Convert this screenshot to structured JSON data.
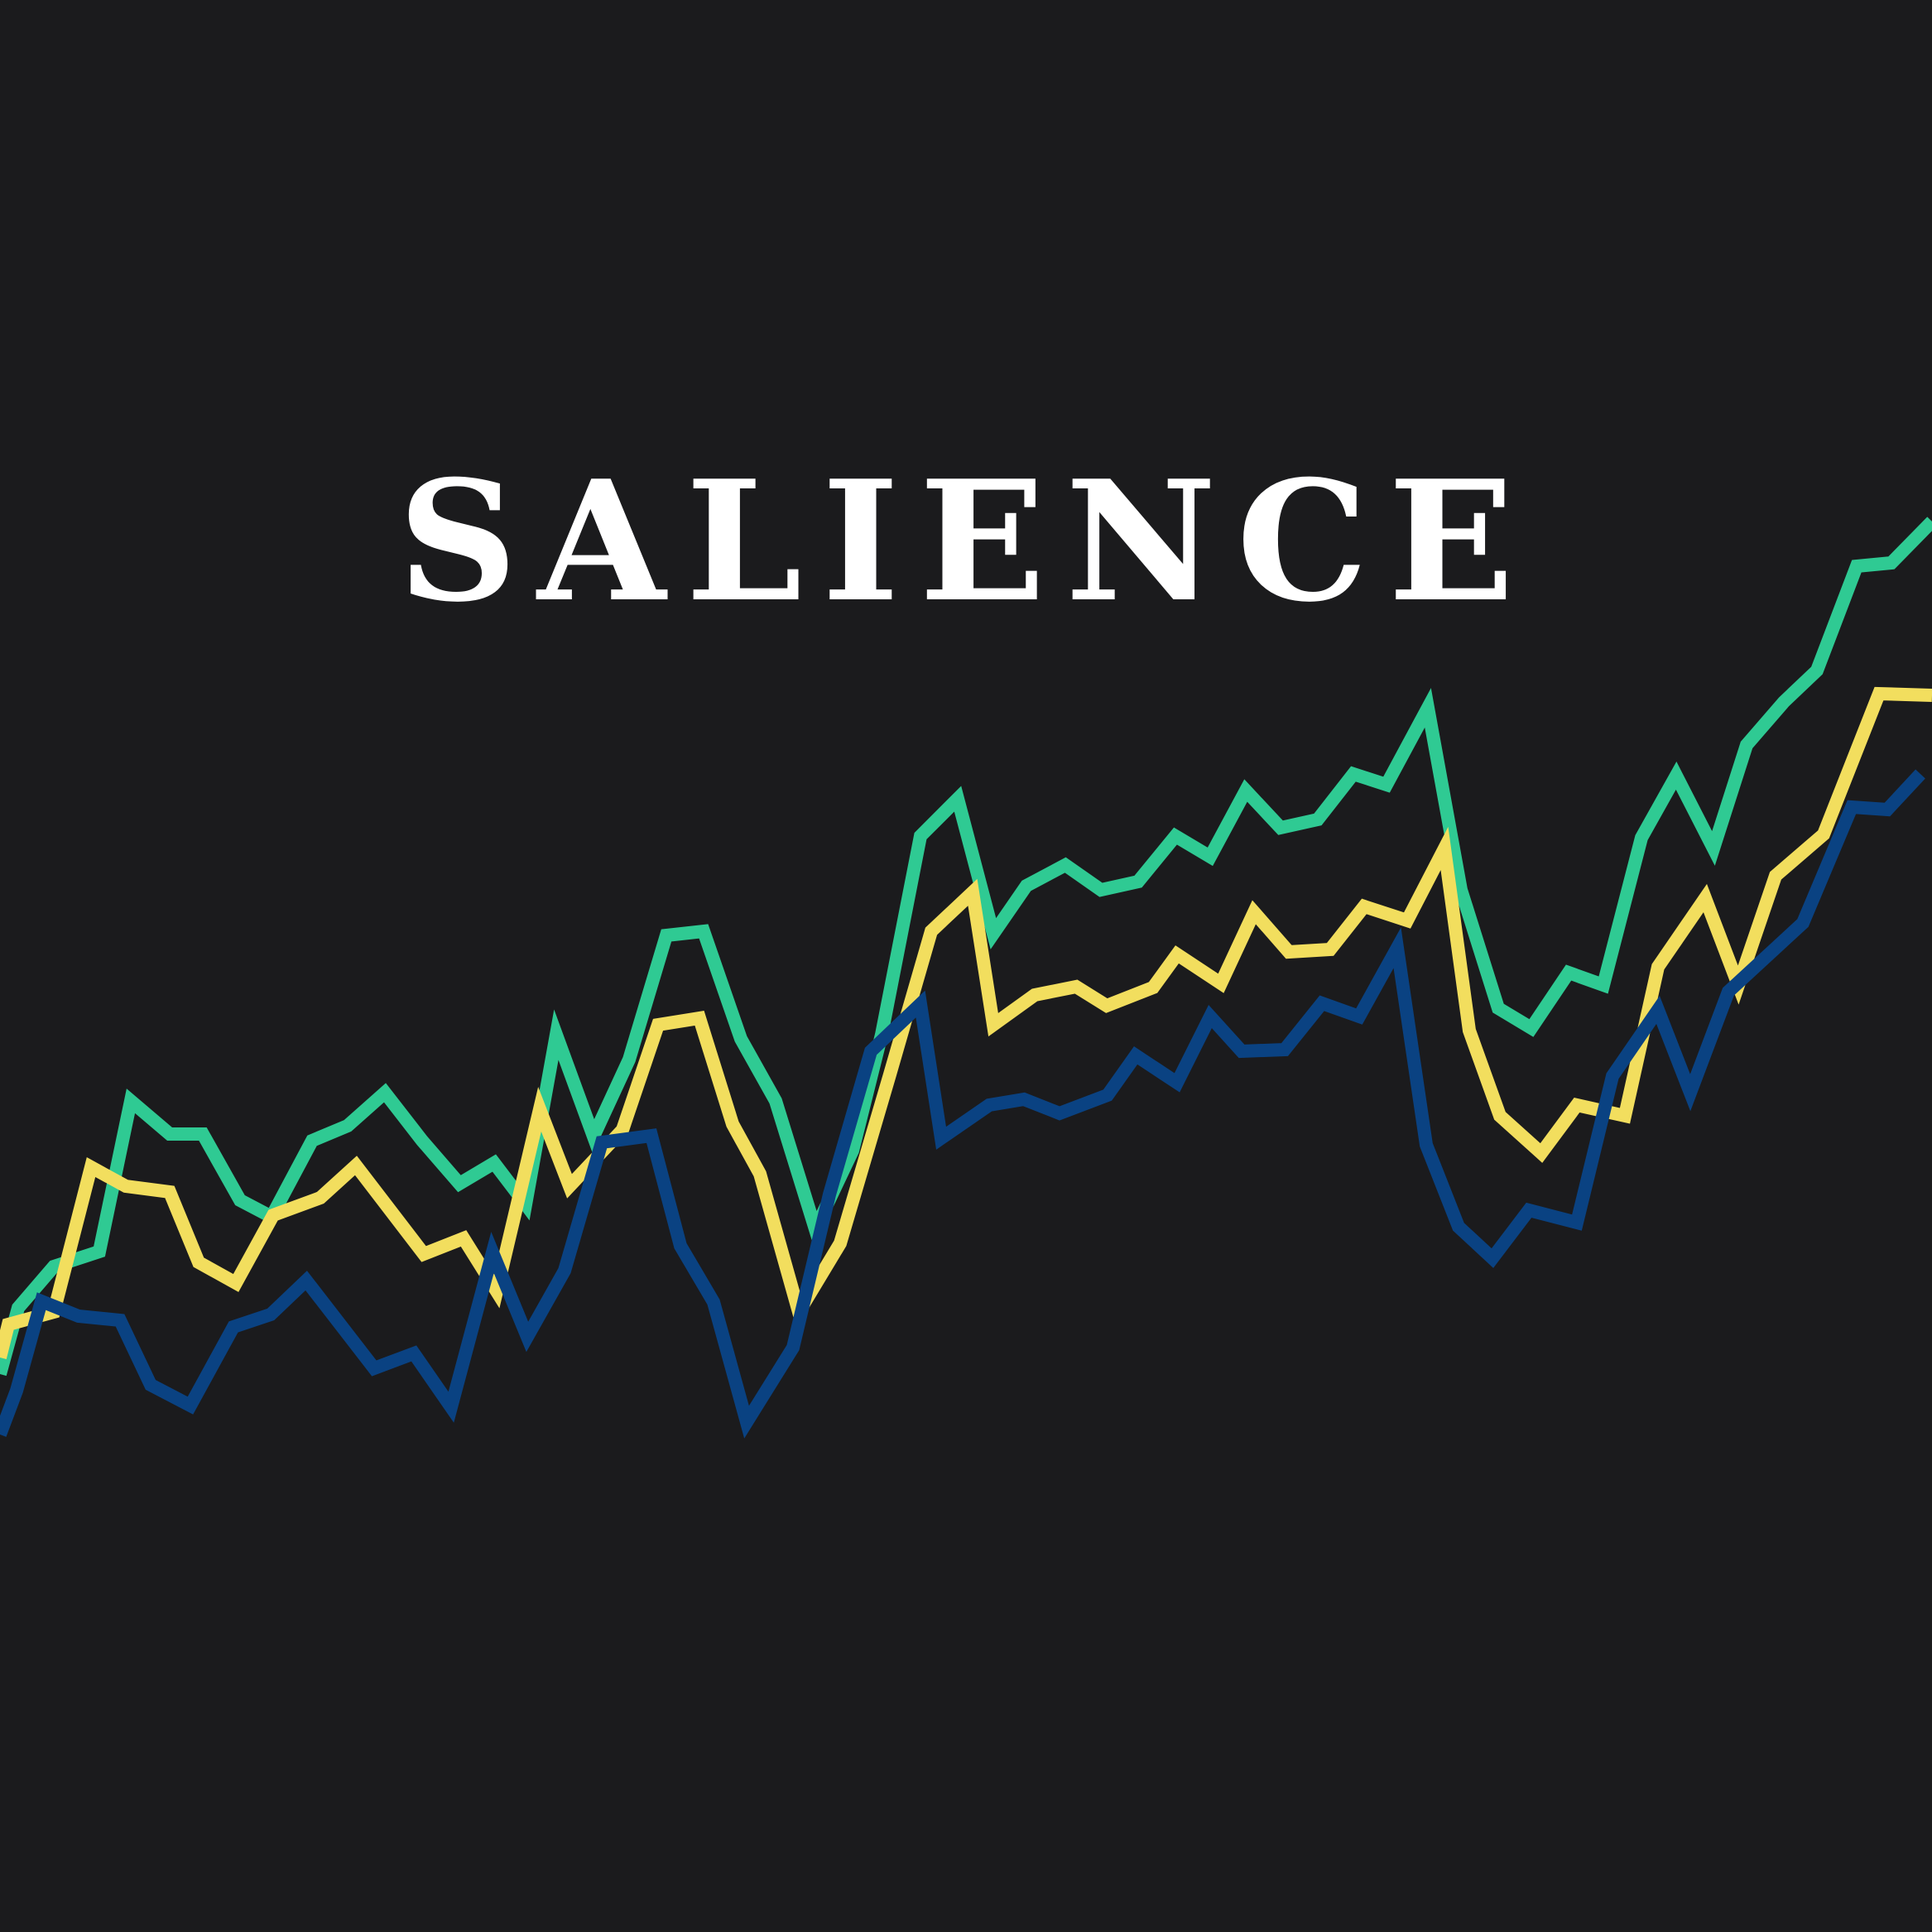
{
  "title": "SALIENCE",
  "colors": {
    "background": "#1b1b1d",
    "title": "#ffffff",
    "green": "#2fca93",
    "yellow": "#f2de5e",
    "blue": "#0a4282"
  },
  "series": [
    {
      "color": "#2fca93",
      "points": [
        [
          0,
          1660
        ],
        [
          22,
          1580
        ],
        [
          65,
          1530
        ],
        [
          120,
          1512
        ],
        [
          158,
          1330
        ],
        [
          205,
          1370
        ],
        [
          245,
          1370
        ],
        [
          290,
          1450
        ],
        [
          328,
          1470
        ],
        [
          377,
          1378
        ],
        [
          420,
          1360
        ],
        [
          465,
          1320
        ],
        [
          510,
          1378
        ],
        [
          555,
          1430
        ],
        [
          597,
          1405
        ],
        [
          635,
          1455
        ],
        [
          672,
          1250
        ],
        [
          717,
          1373
        ],
        [
          760,
          1280
        ],
        [
          805,
          1130
        ],
        [
          850,
          1125
        ],
        [
          895,
          1255
        ],
        [
          937,
          1330
        ],
        [
          985,
          1485
        ],
        [
          1030,
          1390
        ],
        [
          1065,
          1250
        ],
        [
          1112,
          1010
        ],
        [
          1157,
          965
        ],
        [
          1200,
          1128
        ],
        [
          1240,
          1070
        ],
        [
          1287,
          1045
        ],
        [
          1330,
          1075
        ],
        [
          1375,
          1065
        ],
        [
          1420,
          1010
        ],
        [
          1462,
          1035
        ],
        [
          1505,
          955
        ],
        [
          1547,
          1000
        ],
        [
          1592,
          990
        ],
        [
          1635,
          935
        ],
        [
          1675,
          948
        ],
        [
          1725,
          855
        ],
        [
          1765,
          1075
        ],
        [
          1810,
          1218
        ],
        [
          1850,
          1242
        ],
        [
          1895,
          1175
        ],
        [
          1937,
          1190
        ],
        [
          1983,
          1012
        ],
        [
          2025,
          937
        ],
        [
          2070,
          1025
        ],
        [
          2110,
          900
        ],
        [
          2155,
          848
        ],
        [
          2195,
          810
        ],
        [
          2243,
          684
        ],
        [
          2285,
          680
        ],
        [
          2334,
          630
        ]
      ]
    },
    {
      "color": "#f2de5e",
      "points": [
        [
          0,
          1640
        ],
        [
          10,
          1600
        ],
        [
          65,
          1585
        ],
        [
          110,
          1410
        ],
        [
          152,
          1433
        ],
        [
          205,
          1440
        ],
        [
          240,
          1525
        ],
        [
          285,
          1550
        ],
        [
          330,
          1468
        ],
        [
          387,
          1447
        ],
        [
          430,
          1408
        ],
        [
          512,
          1515
        ],
        [
          560,
          1496
        ],
        [
          600,
          1560
        ],
        [
          652,
          1340
        ],
        [
          688,
          1433
        ],
        [
          752,
          1365
        ],
        [
          795,
          1238
        ],
        [
          845,
          1230
        ],
        [
          885,
          1358
        ],
        [
          918,
          1418
        ],
        [
          965,
          1585
        ],
        [
          1015,
          1502
        ],
        [
          1075,
          1298
        ],
        [
          1125,
          1125
        ],
        [
          1175,
          1078
        ],
        [
          1200,
          1238
        ],
        [
          1250,
          1202
        ],
        [
          1300,
          1192
        ],
        [
          1337,
          1215
        ],
        [
          1393,
          1193
        ],
        [
          1422,
          1153
        ],
        [
          1475,
          1188
        ],
        [
          1515,
          1102
        ],
        [
          1557,
          1150
        ],
        [
          1607,
          1147
        ],
        [
          1648,
          1095
        ],
        [
          1700,
          1112
        ],
        [
          1745,
          1025
        ],
        [
          1775,
          1245
        ],
        [
          1812,
          1348
        ],
        [
          1862,
          1393
        ],
        [
          1905,
          1335
        ],
        [
          1963,
          1348
        ],
        [
          2003,
          1168
        ],
        [
          2060,
          1085
        ],
        [
          2100,
          1190
        ],
        [
          2145,
          1058
        ],
        [
          2203,
          1008
        ],
        [
          2270,
          838
        ],
        [
          2334,
          840
        ]
      ]
    },
    {
      "color": "#0a4282",
      "points": [
        [
          0,
          1733
        ],
        [
          20,
          1680
        ],
        [
          50,
          1572
        ],
        [
          95,
          1590
        ],
        [
          145,
          1595
        ],
        [
          182,
          1673
        ],
        [
          230,
          1698
        ],
        [
          282,
          1603
        ],
        [
          327,
          1588
        ],
        [
          370,
          1547
        ],
        [
          452,
          1653
        ],
        [
          500,
          1635
        ],
        [
          545,
          1700
        ],
        [
          595,
          1513
        ],
        [
          637,
          1615
        ],
        [
          682,
          1535
        ],
        [
          727,
          1380
        ],
        [
          787,
          1372
        ],
        [
          822,
          1505
        ],
        [
          862,
          1573
        ],
        [
          902,
          1718
        ],
        [
          958,
          1628
        ],
        [
          1002,
          1443
        ],
        [
          1052,
          1270
        ],
        [
          1112,
          1213
        ],
        [
          1137,
          1375
        ],
        [
          1195,
          1335
        ],
        [
          1237,
          1328
        ],
        [
          1280,
          1345
        ],
        [
          1338,
          1323
        ],
        [
          1372,
          1275
        ],
        [
          1422,
          1308
        ],
        [
          1462,
          1228
        ],
        [
          1500,
          1270
        ],
        [
          1552,
          1268
        ],
        [
          1597,
          1212
        ],
        [
          1642,
          1228
        ],
        [
          1688,
          1145
        ],
        [
          1723,
          1383
        ],
        [
          1762,
          1482
        ],
        [
          1803,
          1520
        ],
        [
          1847,
          1462
        ],
        [
          1905,
          1477
        ],
        [
          1948,
          1300
        ],
        [
          2003,
          1220
        ],
        [
          2042,
          1320
        ],
        [
          2088,
          1198
        ],
        [
          2178,
          1115
        ],
        [
          2237,
          975
        ],
        [
          2280,
          978
        ],
        [
          2320,
          935
        ]
      ]
    }
  ]
}
